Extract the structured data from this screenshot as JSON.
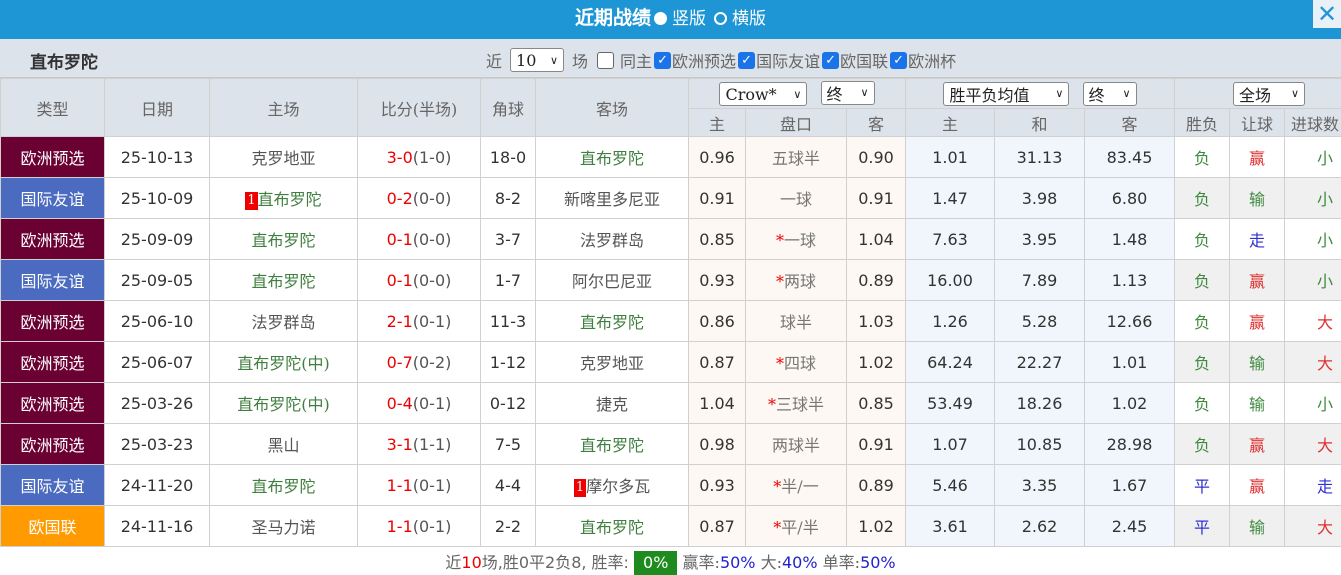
{
  "title": {
    "text": "近期战绩",
    "opt1": "竖版",
    "opt2": "横版",
    "opt1_selected": true
  },
  "close_icon": "close-icon",
  "filter": {
    "team": "直布罗陀",
    "prefix": "近",
    "count": "10",
    "suffix": "场",
    "same_home": "同主",
    "same_home_checked": false,
    "competitions": [
      {
        "label": "欧洲预选",
        "checked": true
      },
      {
        "label": "国际友谊",
        "checked": true
      },
      {
        "label": "欧国联",
        "checked": true
      },
      {
        "label": "欧洲杯",
        "checked": true
      }
    ]
  },
  "headers": {
    "type": "类型",
    "date": "日期",
    "home": "主场",
    "score": "比分(半场)",
    "corner": "角球",
    "away": "客场",
    "ah_company": "Crow*",
    "ah_stage": "终",
    "eu_type": "胜平负均值",
    "eu_stage": "终",
    "period": "全场",
    "ah_home": "主",
    "ah_line": "盘口",
    "ah_away": "客",
    "eu_home": "主",
    "eu_draw": "和",
    "eu_away": "客",
    "wl": "胜负",
    "hc": "让球",
    "ou": "进球数"
  },
  "colors": {
    "欧洲预选": "#6b0033",
    "国际友谊": "#4a6bbf",
    "欧国联": "#ff9a00",
    "negative": "#3f8a3f",
    "positive": "#e03030",
    "neutral": "#3030d0"
  },
  "rows": [
    {
      "type": "欧洲预选",
      "date": "25-10-13",
      "home": "克罗地亚",
      "home_rc": "",
      "score": "3-0",
      "half": "(1-0)",
      "corner": "18-0",
      "away": "直布罗陀",
      "away_rc": "",
      "ah_h": "0.96",
      "ah_star": false,
      "ah_line": "五球半",
      "ah_a": "0.90",
      "eu_h": "1.01",
      "eu_d": "31.13",
      "eu_a": "83.45",
      "wl": "负",
      "hc": "赢",
      "ou": "小"
    },
    {
      "type": "国际友谊",
      "date": "25-10-09",
      "home": "直布罗陀",
      "home_rc": "1",
      "score": "0-2",
      "half": "(0-0)",
      "corner": "8-2",
      "away": "新喀里多尼亚",
      "away_rc": "",
      "ah_h": "0.91",
      "ah_star": false,
      "ah_line": "一球",
      "ah_a": "0.91",
      "eu_h": "1.47",
      "eu_d": "3.98",
      "eu_a": "6.80",
      "wl": "负",
      "hc": "输",
      "ou": "小"
    },
    {
      "type": "欧洲预选",
      "date": "25-09-09",
      "home": "直布罗陀",
      "home_rc": "",
      "score": "0-1",
      "half": "(0-0)",
      "corner": "3-7",
      "away": "法罗群岛",
      "away_rc": "",
      "ah_h": "0.85",
      "ah_star": true,
      "ah_line": "一球",
      "ah_a": "1.04",
      "eu_h": "7.63",
      "eu_d": "3.95",
      "eu_a": "1.48",
      "wl": "负",
      "hc": "走",
      "ou": "小"
    },
    {
      "type": "国际友谊",
      "date": "25-09-05",
      "home": "直布罗陀",
      "home_rc": "",
      "score": "0-1",
      "half": "(0-0)",
      "corner": "1-7",
      "away": "阿尔巴尼亚",
      "away_rc": "",
      "ah_h": "0.93",
      "ah_star": true,
      "ah_line": "两球",
      "ah_a": "0.89",
      "eu_h": "16.00",
      "eu_d": "7.89",
      "eu_a": "1.13",
      "wl": "负",
      "hc": "赢",
      "ou": "小"
    },
    {
      "type": "欧洲预选",
      "date": "25-06-10",
      "home": "法罗群岛",
      "home_rc": "",
      "score": "2-1",
      "half": "(0-1)",
      "corner": "11-3",
      "away": "直布罗陀",
      "away_rc": "",
      "ah_h": "0.86",
      "ah_star": false,
      "ah_line": "球半",
      "ah_a": "1.03",
      "eu_h": "1.26",
      "eu_d": "5.28",
      "eu_a": "12.66",
      "wl": "负",
      "hc": "赢",
      "ou": "大"
    },
    {
      "type": "欧洲预选",
      "date": "25-06-07",
      "home": "直布罗陀(中)",
      "home_rc": "",
      "score": "0-7",
      "half": "(0-2)",
      "corner": "1-12",
      "away": "克罗地亚",
      "away_rc": "",
      "ah_h": "0.87",
      "ah_star": true,
      "ah_line": "四球",
      "ah_a": "1.02",
      "eu_h": "64.24",
      "eu_d": "22.27",
      "eu_a": "1.01",
      "wl": "负",
      "hc": "输",
      "ou": "大"
    },
    {
      "type": "欧洲预选",
      "date": "25-03-26",
      "home": "直布罗陀(中)",
      "home_rc": "",
      "score": "0-4",
      "half": "(0-1)",
      "corner": "0-12",
      "away": "捷克",
      "away_rc": "",
      "ah_h": "1.04",
      "ah_star": true,
      "ah_line": "三球半",
      "ah_a": "0.85",
      "eu_h": "53.49",
      "eu_d": "18.26",
      "eu_a": "1.02",
      "wl": "负",
      "hc": "输",
      "ou": "小"
    },
    {
      "type": "欧洲预选",
      "date": "25-03-23",
      "home": "黑山",
      "home_rc": "",
      "score": "3-1",
      "half": "(1-1)",
      "corner": "7-5",
      "away": "直布罗陀",
      "away_rc": "",
      "ah_h": "0.98",
      "ah_star": false,
      "ah_line": "两球半",
      "ah_a": "0.91",
      "eu_h": "1.07",
      "eu_d": "10.85",
      "eu_a": "28.98",
      "wl": "负",
      "hc": "赢",
      "ou": "大"
    },
    {
      "type": "国际友谊",
      "date": "24-11-20",
      "home": "直布罗陀",
      "home_rc": "",
      "score": "1-1",
      "half": "(0-1)",
      "corner": "4-4",
      "away": "摩尔多瓦",
      "away_rc": "1",
      "ah_h": "0.93",
      "ah_star": true,
      "ah_line": "半/一",
      "ah_a": "0.89",
      "eu_h": "5.46",
      "eu_d": "3.35",
      "eu_a": "1.67",
      "wl": "平",
      "hc": "赢",
      "ou": "走"
    },
    {
      "type": "欧国联",
      "date": "24-11-16",
      "home": "圣马力诺",
      "home_rc": "",
      "score": "1-1",
      "half": "(0-1)",
      "corner": "2-2",
      "away": "直布罗陀",
      "away_rc": "",
      "ah_h": "0.87",
      "ah_star": true,
      "ah_line": "平/半",
      "ah_a": "1.02",
      "eu_h": "3.61",
      "eu_d": "2.62",
      "eu_a": "2.45",
      "wl": "平",
      "hc": "输",
      "ou": "大"
    }
  ],
  "summary": {
    "p1": "近",
    "n": "10",
    "p2": "场,胜0平2负8, 胜率:",
    "win_rate": "0%",
    "l1": "赢率:",
    "v1": "50%",
    "l2": "大:",
    "v2": "40%",
    "l3": "单率:",
    "v3": "50%"
  }
}
